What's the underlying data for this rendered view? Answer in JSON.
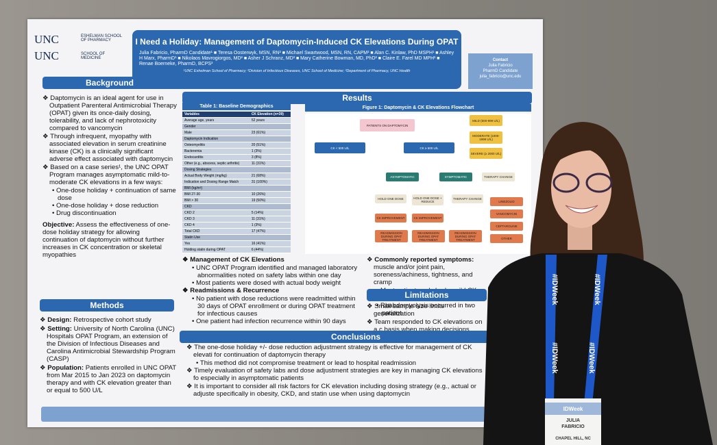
{
  "logos": [
    "UNC",
    "ESHELMAN SCHOOL OF PHARMACY",
    "UNC",
    "SCHOOL OF MEDICINE"
  ],
  "header": {
    "title": "I Need a Holiday: Management of Daptomycin-Induced CK Elevations During OPAT",
    "authors": "Julia Fabricio, PharmD Candidate¹ ■ Teresa Oosterwyk, MSN, RN² ■ Michael Swartwood, MSN, RN, CAPM² ■ Alan C. Kinlaw, PhD MSPH¹ ■ Ashley H Marx, PharmD¹ ■ Nikolaos Mavrogiorgos, MD² ■ Asher J Schranz, MD² ■ Mary Catherine Bowman, MD, PhD² ■ Claire E. Farel MD MPH² ■ Renae Boerneke, PharmD, BCPS³",
    "affiliations": "¹UNC Eshelman School of Pharmacy; ²Division of Infectious Diseases, UNC School of Medicine; ³Department of Pharmacy, UNC Health"
  },
  "contact": {
    "heading": "Contact",
    "name": "Julia Fabricio",
    "role": "PharmD Candidate",
    "email": "julia_fabricio@unc.edu"
  },
  "background": {
    "heading": "Background",
    "items": [
      "Daptomycin is an ideal agent for use in Outpatient Parenteral Antimicrobial Therapy (OPAT) given its once-daily dosing, tolerability, and lack of nephrotoxicity compared to vancomycin",
      "Through infrequent, myopathy with associated elevation in serum creatinine kinase (CK) is a clinically significant adverse effect associated with daptomycin",
      "Based on a case series¹, the UNC OPAT Program manages asymptomatic mild-to-moderate CK elevations in a few ways:"
    ],
    "subitems": [
      "One-dose holiday + continuation of same dose",
      "One-dose holiday + dose reduction",
      "Drug discontinuation"
    ],
    "objective_label": "Objective:",
    "objective": "Assess the effectiveness of one-dose holiday strategy for allowing continuation of daptomycin without further increases in CK concentration or skeletal myopathies"
  },
  "methods": {
    "heading": "Methods",
    "items": [
      {
        "label": "Design:",
        "text": "Retrospective cohort study"
      },
      {
        "label": "Setting:",
        "text": "University of North Carolina (UNC) Hospitals OPAT Program, an extension of the Division of Infectious Diseases and Carolina Antimicrobial Stewardship Program (CASP)"
      },
      {
        "label": "Population:",
        "text": "Patients enrolled in UNC OPAT from Mar 2015 to Jan 2023 on daptomycin therapy and with CK elevation greater than or equal to 500 U/L"
      }
    ]
  },
  "results": {
    "heading": "Results",
    "table": {
      "title": "Table 1: Baseline Demographics",
      "header": [
        "Variables",
        "CK Elevation (n=39)"
      ],
      "rows": [
        [
          "Average age, years",
          "52 years"
        ],
        [
          "Gender"
        ],
        [
          "Male",
          "23 (61%)"
        ],
        [
          "Daptomycin Indication"
        ],
        [
          "Osteomyelitis",
          "20 (51%)"
        ],
        [
          "Bacteremia",
          "1 (3%)"
        ],
        [
          "Endocarditis",
          "3 (8%)"
        ],
        [
          "Other (e.g., abscess, septic arthritis)",
          "11 (31%)"
        ],
        [
          "Dosing Strategies"
        ],
        [
          "Actual Body Weight (mg/kg)",
          "21 (68%)"
        ],
        [
          "Indication and Dosing Range Match",
          "31 (100%)"
        ],
        [
          "BMI (kg/m²)"
        ],
        [
          "BMI 27-30",
          "10 (26%)"
        ],
        [
          "BMI > 30",
          "19 (50%)"
        ],
        [
          "CKD"
        ],
        [
          "CKD 2",
          "5 (14%)"
        ],
        [
          "CKD 3",
          "11 (31%)"
        ],
        [
          "CKD 4",
          "1 (3%)"
        ],
        [
          "Total CKD",
          "17 (47%)"
        ],
        [
          "Statin Use"
        ],
        [
          "Yes",
          "16 (41%)"
        ],
        [
          "Holding statin during OPAT",
          "6 (44%)"
        ]
      ]
    },
    "figure": {
      "title": "Figure 1: Daptomycin & CK Elevations Flowchart",
      "nodes": [
        "PATIENTS ON DAPTOMYCIN",
        "CK < 500 U/L",
        "CK ≥ 500 U/L",
        "MILD (500-999 U/L)",
        "MODERATE (1000-1999 U/L)",
        "SEVERE (≥ 2000 U/L)",
        "ASYMPTOMATIC",
        "SYMPTOMATIC",
        "THERAPY CHANGE",
        "HOLD ONE DOSE",
        "HOLD ONE DOSE + REDUCE",
        "THERAPY CHANGE",
        "CK IMPROVEMENT",
        "CK IMPROVEMENT",
        "READMISSION DURING OPAT TREATMENT",
        "READMISSION DURING OPAT TREATMENT",
        "READMISSION DURING OPAT TREATMENT",
        "LINEZOLID",
        "VANCOMYCIN",
        "CEFTAROLINE",
        "OTHER"
      ]
    },
    "management": {
      "heading": "Management of CK Elevations",
      "items": [
        "UNC OPAT Program identified and managed laboratory abnormalities noted on safety labs within one day",
        "Most patients were dosed with actual body weight"
      ]
    },
    "readmissions": {
      "heading": "Readmissions & Recurrence",
      "items": [
        "No patient with dose reductions were readmitted within 30 days of OPAT enrollment or during OPAT treatment for infectious causes",
        "One patient had infection recurrence within 90 days"
      ]
    },
    "symptoms": {
      "label": "Commonly reported symptoms:",
      "text": "muscle and/or joint pain, soreness/achiness, tightness, and cramp",
      "items": [
        "Most patients only had a mild CK elevati",
        "Rhabdomyolysis occurred in two patient"
      ]
    }
  },
  "limitations": {
    "heading": "Limitations",
    "items": [
      "Small sample size limits generalization",
      "Team responded to CK elevations on a c basis when making decisions about inte"
    ]
  },
  "conclusions": {
    "heading": "Conclusions",
    "items": [
      "The one-dose holiday +/- dose reduction adjustment strategy is effective for management of CK elevati for continuation of daptomycin therapy",
      "Timely evaluation of safety labs and dose adjustment strategies are key in managing CK elevations fo especially in asymptomatic patients",
      "It is important to consider all risk factors for CK elevation including dosing strategy (e.g., actual or adjuste specifically in obesity, CKD, and statin use when using daptomycin"
    ],
    "subitem": "This method did not compromise treatment or lead to hospital readmission"
  },
  "lanyard": [
    "#IDWeek",
    "#IDWeek",
    "#IDWeek",
    "#IDWeek"
  ],
  "badge": {
    "event": "IDWeek",
    "first": "JULIA",
    "last": "FABRICIO",
    "city": "CHAPEL HILL, NC"
  }
}
